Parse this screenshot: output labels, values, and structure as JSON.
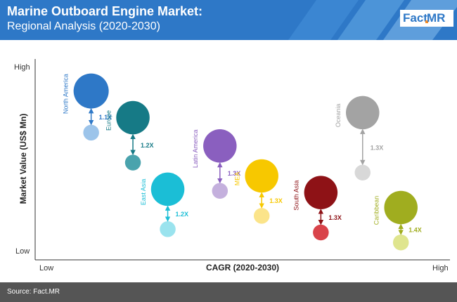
{
  "header": {
    "title": "Marine Outboard Engine Market:",
    "subtitle": "Regional Analysis (2020-2030)",
    "logo_left": "Fact",
    "logo_right": "MR",
    "bg_color": "#2e78c7"
  },
  "footer": {
    "source": "Source: Fact.MR"
  },
  "chart_data": {
    "type": "scatter",
    "xlabel": "CAGR (2020-2030)",
    "ylabel": "Market Value (US$ Mn)",
    "x_ticks": {
      "low": "Low",
      "high": "High"
    },
    "y_ticks": {
      "low": "Low",
      "high": "High"
    },
    "grid": false,
    "series": [
      {
        "name": "North America",
        "label": "1.1X",
        "color": "#2e78c7",
        "light_color": "#9cc4ea",
        "x": 0.07,
        "y": 0.93,
        "y_2020": 0.68,
        "size": 1.0,
        "size_2020": 0.45
      },
      {
        "name": "Europe",
        "label": "1.2X",
        "color": "#167a86",
        "light_color": "#4aa3ad",
        "x": 0.19,
        "y": 0.77,
        "y_2020": 0.5,
        "size": 0.95,
        "size_2020": 0.45
      },
      {
        "name": "East Asia",
        "label": "1.2X",
        "color": "#1bbed6",
        "light_color": "#9ae3ee",
        "x": 0.29,
        "y": 0.34,
        "y_2020": 0.1,
        "size": 0.95,
        "size_2020": 0.45
      },
      {
        "name": "Latin America",
        "label": "1.3X",
        "color": "#8a5fbf",
        "light_color": "#c4b0dd",
        "x": 0.44,
        "y": 0.6,
        "y_2020": 0.33,
        "size": 0.95,
        "size_2020": 0.45
      },
      {
        "name": "MEA",
        "label": "1.3X",
        "color": "#f7c800",
        "light_color": "#fbe48a",
        "x": 0.56,
        "y": 0.42,
        "y_2020": 0.18,
        "size": 0.95,
        "size_2020": 0.45
      },
      {
        "name": "South Asia",
        "label": "1.3X",
        "color": "#8e1216",
        "light_color": "#d9434a",
        "x": 0.73,
        "y": 0.32,
        "y_2020": 0.08,
        "size": 0.95,
        "size_2020": 0.45
      },
      {
        "name": "Oceania",
        "label": "1.3X",
        "color": "#a3a3a3",
        "light_color": "#d8d8d8",
        "x": 0.85,
        "y": 0.8,
        "y_2020": 0.44,
        "size": 0.95,
        "size_2020": 0.45
      },
      {
        "name": "Caribbean",
        "label": "1.4X",
        "color": "#a0ad1f",
        "light_color": "#dfe58e",
        "x": 0.96,
        "y": 0.23,
        "y_2020": 0.02,
        "size": 0.95,
        "size_2020": 0.45
      }
    ]
  }
}
